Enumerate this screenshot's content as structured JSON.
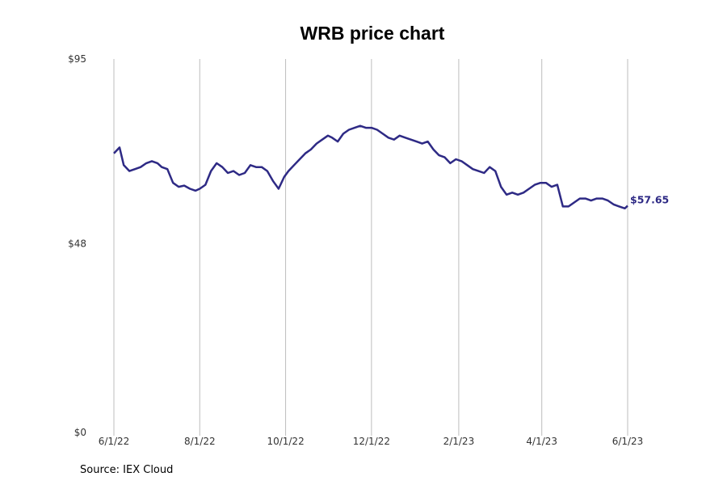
{
  "chart_data": {
    "type": "line",
    "title": "WRB price chart",
    "source": "Source: IEX Cloud",
    "xlabel": "",
    "ylabel": "",
    "x_ticks": [
      "6/1/22",
      "8/1/22",
      "10/1/22",
      "12/1/22",
      "2/1/23",
      "4/1/23",
      "6/1/23"
    ],
    "y_ticks": [
      "$0",
      "$48",
      "$95"
    ],
    "ylim": [
      0,
      95
    ],
    "xlim": [
      "2022-06-01",
      "2023-06-01"
    ],
    "grid": "vertical",
    "line_color": "#2e2a85",
    "last_value_label": "$57.65",
    "series": [
      {
        "x": [
          "2022-06-01",
          "2022-06-05",
          "2022-06-08",
          "2022-06-12",
          "2022-06-16",
          "2022-06-20",
          "2022-06-24",
          "2022-06-28",
          "2022-07-02",
          "2022-07-05",
          "2022-07-09",
          "2022-07-13",
          "2022-07-17",
          "2022-07-21",
          "2022-07-25",
          "2022-07-29",
          "2022-08-01",
          "2022-08-05",
          "2022-08-09",
          "2022-08-13",
          "2022-08-17",
          "2022-08-21",
          "2022-08-25",
          "2022-08-29",
          "2022-09-02",
          "2022-09-06",
          "2022-09-10",
          "2022-09-14",
          "2022-09-18",
          "2022-09-22",
          "2022-09-26",
          "2022-09-30",
          "2022-10-03",
          "2022-10-07",
          "2022-10-11",
          "2022-10-15",
          "2022-10-19",
          "2022-10-23",
          "2022-10-27",
          "2022-10-31",
          "2022-11-03",
          "2022-11-07",
          "2022-11-11",
          "2022-11-15",
          "2022-11-19",
          "2022-11-23",
          "2022-11-27",
          "2022-12-01",
          "2022-12-05",
          "2022-12-09",
          "2022-12-13",
          "2022-12-17",
          "2022-12-21",
          "2022-12-25",
          "2022-12-29",
          "2023-01-02",
          "2023-01-06",
          "2023-01-10",
          "2023-01-14",
          "2023-01-18",
          "2023-01-22",
          "2023-01-26",
          "2023-01-30",
          "2023-02-03",
          "2023-02-07",
          "2023-02-11",
          "2023-02-15",
          "2023-02-19",
          "2023-02-23",
          "2023-02-27",
          "2023-03-03",
          "2023-03-07",
          "2023-03-11",
          "2023-03-15",
          "2023-03-19",
          "2023-03-23",
          "2023-03-27",
          "2023-03-31",
          "2023-04-04",
          "2023-04-08",
          "2023-04-12",
          "2023-04-16",
          "2023-04-20",
          "2023-04-24",
          "2023-04-28",
          "2023-05-02",
          "2023-05-06",
          "2023-05-10",
          "2023-05-14",
          "2023-05-18",
          "2023-05-22",
          "2023-05-26",
          "2023-05-30",
          "2023-06-01"
        ],
        "y": [
          71.0,
          72.5,
          68.0,
          66.5,
          67.0,
          67.5,
          68.5,
          69.0,
          68.5,
          67.5,
          67.0,
          63.5,
          62.5,
          62.8,
          62.0,
          61.5,
          62.0,
          63.0,
          66.5,
          68.5,
          67.5,
          66.0,
          66.5,
          65.5,
          66.0,
          68.0,
          67.5,
          67.5,
          66.5,
          64.0,
          62.0,
          65.0,
          66.5,
          68.0,
          69.5,
          71.0,
          72.0,
          73.5,
          74.5,
          75.5,
          75.0,
          74.0,
          76.0,
          77.0,
          77.5,
          78.0,
          77.5,
          77.5,
          77.0,
          76.0,
          75.0,
          74.5,
          75.5,
          75.0,
          74.5,
          74.0,
          73.5,
          74.0,
          72.0,
          70.5,
          70.0,
          68.5,
          69.5,
          69.0,
          68.0,
          67.0,
          66.5,
          66.0,
          67.5,
          66.5,
          62.5,
          60.5,
          61.0,
          60.5,
          61.0,
          62.0,
          63.0,
          63.5,
          63.5,
          62.5,
          63.0,
          57.5,
          57.5,
          58.5,
          59.5,
          59.5,
          59.0,
          59.5,
          59.5,
          59.0,
          58.0,
          57.5,
          57.0,
          57.65
        ]
      }
    ]
  }
}
